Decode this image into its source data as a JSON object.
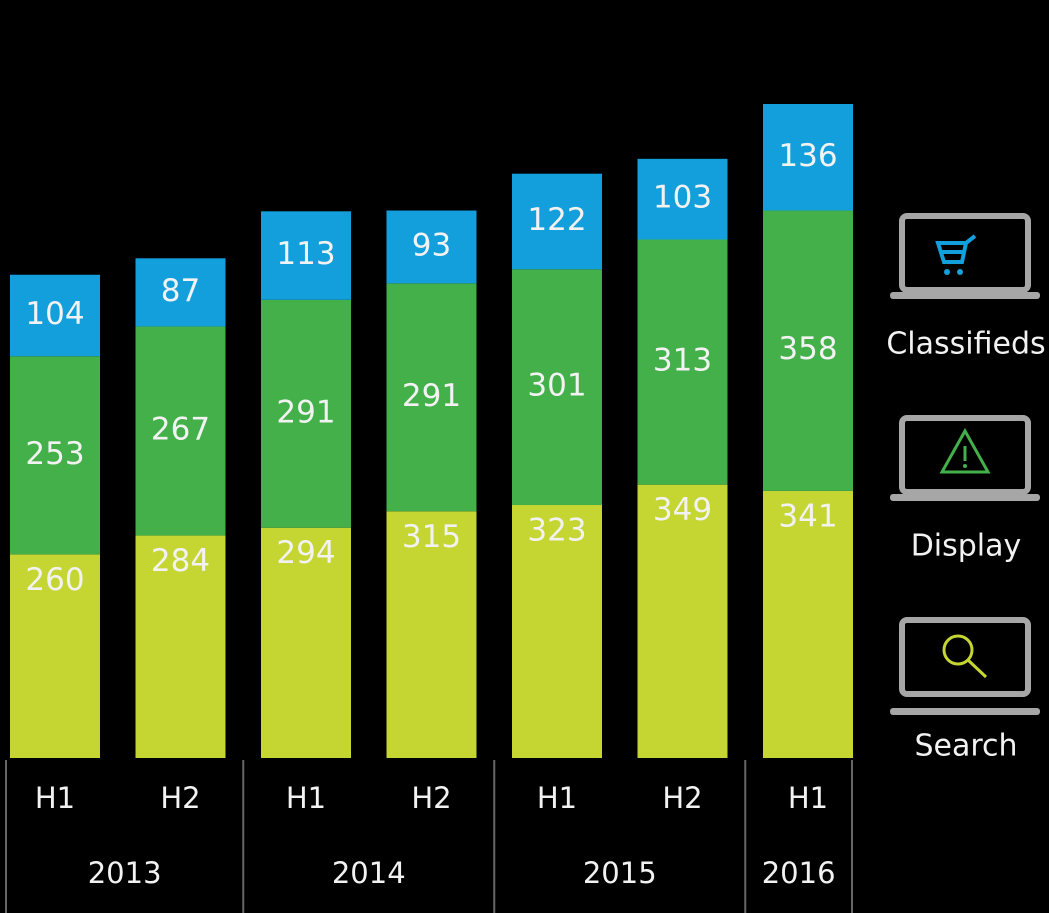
{
  "chart_data": {
    "type": "stacked_bar",
    "groups": [
      {
        "name": "2013",
        "categories": [
          "H1",
          "H2"
        ]
      },
      {
        "name": "2014",
        "categories": [
          "H1",
          "H2"
        ]
      },
      {
        "name": "2015",
        "categories": [
          "H1",
          "H2"
        ]
      },
      {
        "name": "2016",
        "categories": [
          "H1"
        ]
      }
    ],
    "series": [
      {
        "name": "Search",
        "color": "#c5d532",
        "values": [
          260,
          284,
          294,
          315,
          323,
          349,
          341
        ]
      },
      {
        "name": "Display",
        "color": "#43b04a",
        "values": [
          253,
          267,
          291,
          291,
          301,
          313,
          358
        ]
      },
      {
        "name": "Classifieds",
        "color": "#139fdb",
        "values": [
          104,
          87,
          113,
          93,
          122,
          103,
          136
        ]
      }
    ]
  }
}
